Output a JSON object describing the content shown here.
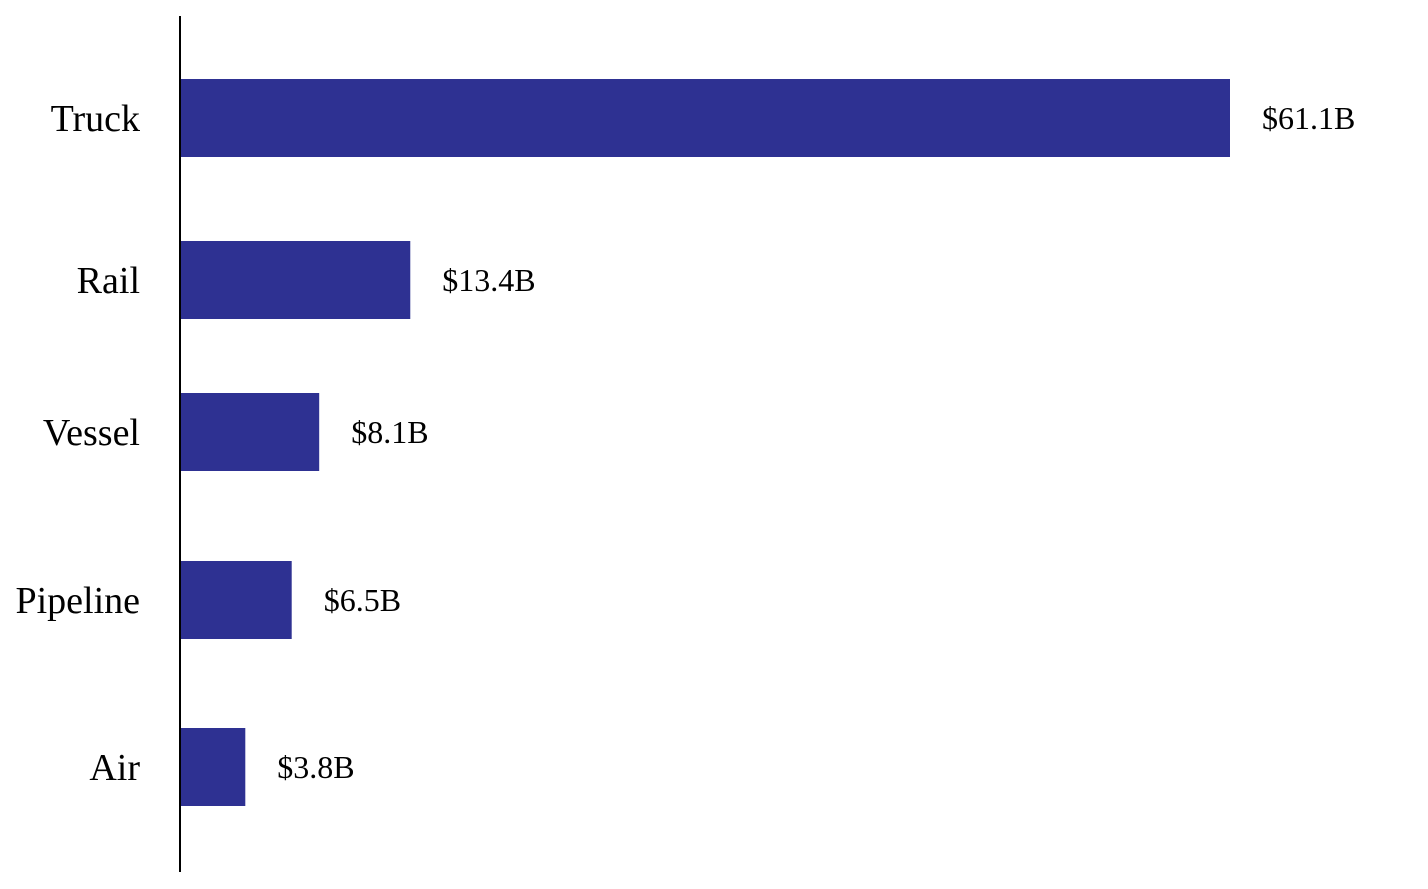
{
  "chart_data": {
    "type": "bar",
    "orientation": "horizontal",
    "title": "",
    "xlabel": "",
    "ylabel": "",
    "categories": [
      "Truck",
      "Rail",
      "Vessel",
      "Pipeline",
      "Air"
    ],
    "values": [
      61.1,
      13.4,
      8.1,
      6.5,
      3.8
    ],
    "data_labels": [
      "$61.1B",
      "$13.4B",
      "$8.1B",
      "$6.5B",
      "$3.8B"
    ],
    "xlim": [
      0,
      61.1
    ],
    "grid": false,
    "legend": "none",
    "bar_color": "#2e3192"
  }
}
